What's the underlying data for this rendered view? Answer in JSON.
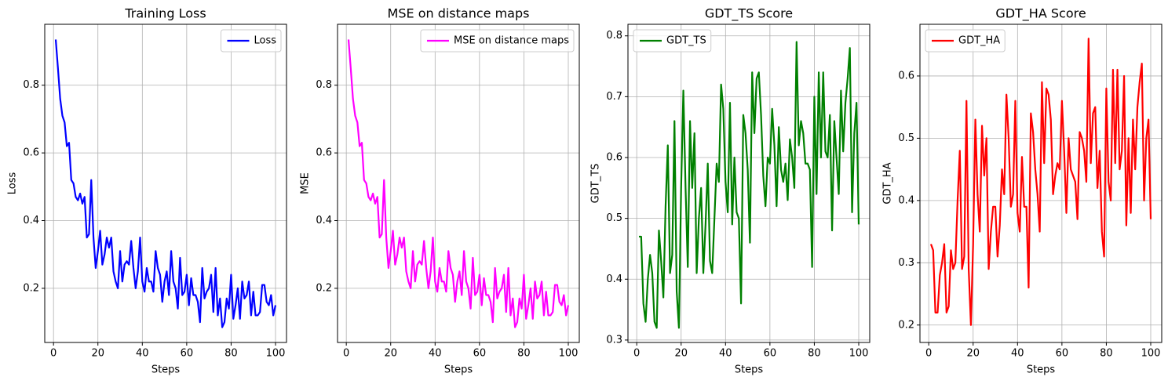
{
  "chart_data": [
    {
      "type": "line",
      "title": "Training Loss",
      "xlabel": "Steps",
      "ylabel": "Loss",
      "x": [
        1,
        2,
        3,
        4,
        5,
        6,
        7,
        8,
        9,
        10,
        11,
        12,
        13,
        14,
        15,
        16,
        17,
        18,
        19,
        20,
        21,
        22,
        23,
        24,
        25,
        26,
        27,
        28,
        29,
        30,
        31,
        32,
        33,
        34,
        35,
        36,
        37,
        38,
        39,
        40,
        41,
        42,
        43,
        44,
        45,
        46,
        47,
        48,
        49,
        50,
        51,
        52,
        53,
        54,
        55,
        56,
        57,
        58,
        59,
        60,
        61,
        62,
        63,
        64,
        65,
        66,
        67,
        68,
        69,
        70,
        71,
        72,
        73,
        74,
        75,
        76,
        77,
        78,
        79,
        80,
        81,
        82,
        83,
        84,
        85,
        86,
        87,
        88,
        89,
        90,
        91,
        92,
        93,
        94,
        95,
        96,
        97,
        98,
        99,
        100
      ],
      "series": [
        {
          "name": "Loss",
          "color": "#0000ff",
          "values": [
            0.935,
            0.85,
            0.76,
            0.71,
            0.69,
            0.62,
            0.63,
            0.52,
            0.51,
            0.47,
            0.46,
            0.48,
            0.45,
            0.47,
            0.35,
            0.36,
            0.52,
            0.35,
            0.26,
            0.31,
            0.37,
            0.27,
            0.3,
            0.35,
            0.32,
            0.35,
            0.25,
            0.22,
            0.2,
            0.31,
            0.22,
            0.27,
            0.28,
            0.27,
            0.34,
            0.26,
            0.2,
            0.25,
            0.35,
            0.22,
            0.19,
            0.26,
            0.22,
            0.22,
            0.19,
            0.31,
            0.26,
            0.24,
            0.16,
            0.22,
            0.25,
            0.18,
            0.31,
            0.22,
            0.2,
            0.14,
            0.29,
            0.18,
            0.19,
            0.24,
            0.15,
            0.23,
            0.18,
            0.18,
            0.16,
            0.1,
            0.26,
            0.17,
            0.19,
            0.2,
            0.24,
            0.13,
            0.26,
            0.12,
            0.17,
            0.085,
            0.1,
            0.17,
            0.14,
            0.24,
            0.11,
            0.15,
            0.2,
            0.11,
            0.22,
            0.17,
            0.18,
            0.22,
            0.12,
            0.19,
            0.12,
            0.12,
            0.13,
            0.21,
            0.21,
            0.16,
            0.15,
            0.18,
            0.12,
            0.15
          ]
        }
      ],
      "xlim": [
        -3.95,
        104.95
      ],
      "xticks": [
        0,
        20,
        40,
        60,
        80,
        100
      ],
      "ylim": [
        0.04,
        0.98
      ],
      "yticks": [
        0.2,
        0.4,
        0.6,
        0.8
      ],
      "grid": true,
      "legend": "upper-right"
    },
    {
      "type": "line",
      "title": "MSE on distance maps",
      "xlabel": "Steps",
      "ylabel": "MSE",
      "x": [
        1,
        2,
        3,
        4,
        5,
        6,
        7,
        8,
        9,
        10,
        11,
        12,
        13,
        14,
        15,
        16,
        17,
        18,
        19,
        20,
        21,
        22,
        23,
        24,
        25,
        26,
        27,
        28,
        29,
        30,
        31,
        32,
        33,
        34,
        35,
        36,
        37,
        38,
        39,
        40,
        41,
        42,
        43,
        44,
        45,
        46,
        47,
        48,
        49,
        50,
        51,
        52,
        53,
        54,
        55,
        56,
        57,
        58,
        59,
        60,
        61,
        62,
        63,
        64,
        65,
        66,
        67,
        68,
        69,
        70,
        71,
        72,
        73,
        74,
        75,
        76,
        77,
        78,
        79,
        80,
        81,
        82,
        83,
        84,
        85,
        86,
        87,
        88,
        89,
        90,
        91,
        92,
        93,
        94,
        95,
        96,
        97,
        98,
        99,
        100
      ],
      "series": [
        {
          "name": "MSE on distance maps",
          "color": "#ff00ff",
          "values": [
            0.935,
            0.85,
            0.76,
            0.71,
            0.69,
            0.62,
            0.63,
            0.52,
            0.51,
            0.47,
            0.46,
            0.48,
            0.45,
            0.47,
            0.35,
            0.36,
            0.52,
            0.35,
            0.26,
            0.31,
            0.37,
            0.27,
            0.3,
            0.35,
            0.32,
            0.35,
            0.25,
            0.22,
            0.2,
            0.31,
            0.22,
            0.27,
            0.28,
            0.27,
            0.34,
            0.26,
            0.2,
            0.25,
            0.35,
            0.22,
            0.19,
            0.26,
            0.22,
            0.22,
            0.19,
            0.31,
            0.26,
            0.24,
            0.16,
            0.22,
            0.25,
            0.18,
            0.31,
            0.22,
            0.2,
            0.14,
            0.29,
            0.18,
            0.19,
            0.24,
            0.15,
            0.23,
            0.18,
            0.18,
            0.16,
            0.1,
            0.26,
            0.17,
            0.19,
            0.2,
            0.24,
            0.13,
            0.26,
            0.12,
            0.17,
            0.085,
            0.1,
            0.17,
            0.14,
            0.24,
            0.11,
            0.15,
            0.2,
            0.11,
            0.22,
            0.17,
            0.18,
            0.22,
            0.12,
            0.19,
            0.12,
            0.12,
            0.13,
            0.21,
            0.21,
            0.16,
            0.15,
            0.18,
            0.12,
            0.15
          ]
        }
      ],
      "xlim": [
        -3.95,
        104.95
      ],
      "xticks": [
        0,
        20,
        40,
        60,
        80,
        100
      ],
      "ylim": [
        0.04,
        0.98
      ],
      "yticks": [
        0.2,
        0.4,
        0.6,
        0.8
      ],
      "grid": true,
      "legend": "upper-right"
    },
    {
      "type": "line",
      "title": "GDT_TS Score",
      "xlabel": "Steps",
      "ylabel": "GDT_TS",
      "x": [
        1,
        2,
        3,
        4,
        5,
        6,
        7,
        8,
        9,
        10,
        11,
        12,
        13,
        14,
        15,
        16,
        17,
        18,
        19,
        20,
        21,
        22,
        23,
        24,
        25,
        26,
        27,
        28,
        29,
        30,
        31,
        32,
        33,
        34,
        35,
        36,
        37,
        38,
        39,
        40,
        41,
        42,
        43,
        44,
        45,
        46,
        47,
        48,
        49,
        50,
        51,
        52,
        53,
        54,
        55,
        56,
        57,
        58,
        59,
        60,
        61,
        62,
        63,
        64,
        65,
        66,
        67,
        68,
        69,
        70,
        71,
        72,
        73,
        74,
        75,
        76,
        77,
        78,
        79,
        80,
        81,
        82,
        83,
        84,
        85,
        86,
        87,
        88,
        89,
        90,
        91,
        92,
        93,
        94,
        95,
        96,
        97,
        98,
        99,
        100
      ],
      "series": [
        {
          "name": "GDT_TS",
          "color": "#008000",
          "values": [
            0.47,
            0.47,
            0.36,
            0.33,
            0.4,
            0.44,
            0.41,
            0.33,
            0.32,
            0.48,
            0.43,
            0.37,
            0.52,
            0.62,
            0.41,
            0.44,
            0.66,
            0.38,
            0.32,
            0.55,
            0.71,
            0.55,
            0.42,
            0.66,
            0.55,
            0.64,
            0.41,
            0.5,
            0.55,
            0.41,
            0.49,
            0.59,
            0.43,
            0.41,
            0.5,
            0.59,
            0.56,
            0.72,
            0.68,
            0.56,
            0.51,
            0.69,
            0.49,
            0.6,
            0.51,
            0.5,
            0.36,
            0.67,
            0.64,
            0.58,
            0.46,
            0.74,
            0.64,
            0.73,
            0.74,
            0.67,
            0.57,
            0.52,
            0.6,
            0.59,
            0.68,
            0.62,
            0.52,
            0.65,
            0.58,
            0.56,
            0.59,
            0.53,
            0.63,
            0.6,
            0.55,
            0.79,
            0.62,
            0.66,
            0.64,
            0.59,
            0.59,
            0.58,
            0.42,
            0.7,
            0.54,
            0.74,
            0.6,
            0.74,
            0.61,
            0.6,
            0.67,
            0.48,
            0.66,
            0.6,
            0.54,
            0.71,
            0.61,
            0.69,
            0.73,
            0.78,
            0.51,
            0.64,
            0.69,
            0.49
          ]
        }
      ],
      "xlim": [
        -3.95,
        104.95
      ],
      "xticks": [
        0,
        20,
        40,
        60,
        80,
        100
      ],
      "ylim": [
        0.296,
        0.819
      ],
      "yticks": [
        0.3,
        0.4,
        0.5,
        0.6,
        0.7,
        0.8
      ],
      "grid": true,
      "legend": "upper-left"
    },
    {
      "type": "line",
      "title": "GDT_HA Score",
      "xlabel": "Steps",
      "ylabel": "GDT_HA",
      "x": [
        1,
        2,
        3,
        4,
        5,
        6,
        7,
        8,
        9,
        10,
        11,
        12,
        13,
        14,
        15,
        16,
        17,
        18,
        19,
        20,
        21,
        22,
        23,
        24,
        25,
        26,
        27,
        28,
        29,
        30,
        31,
        32,
        33,
        34,
        35,
        36,
        37,
        38,
        39,
        40,
        41,
        42,
        43,
        44,
        45,
        46,
        47,
        48,
        49,
        50,
        51,
        52,
        53,
        54,
        55,
        56,
        57,
        58,
        59,
        60,
        61,
        62,
        63,
        64,
        65,
        66,
        67,
        68,
        69,
        70,
        71,
        72,
        73,
        74,
        75,
        76,
        77,
        78,
        79,
        80,
        81,
        82,
        83,
        84,
        85,
        86,
        87,
        88,
        89,
        90,
        91,
        92,
        93,
        94,
        95,
        96,
        97,
        98,
        99,
        100
      ],
      "series": [
        {
          "name": "GDT_HA",
          "color": "#ff0000",
          "values": [
            0.33,
            0.32,
            0.22,
            0.22,
            0.28,
            0.3,
            0.33,
            0.22,
            0.23,
            0.32,
            0.29,
            0.3,
            0.4,
            0.48,
            0.29,
            0.31,
            0.56,
            0.29,
            0.2,
            0.33,
            0.53,
            0.41,
            0.35,
            0.52,
            0.44,
            0.5,
            0.29,
            0.35,
            0.39,
            0.39,
            0.31,
            0.36,
            0.45,
            0.41,
            0.57,
            0.5,
            0.39,
            0.41,
            0.56,
            0.38,
            0.35,
            0.47,
            0.39,
            0.39,
            0.26,
            0.54,
            0.51,
            0.45,
            0.41,
            0.35,
            0.59,
            0.46,
            0.58,
            0.57,
            0.53,
            0.41,
            0.44,
            0.46,
            0.45,
            0.56,
            0.48,
            0.38,
            0.5,
            0.45,
            0.44,
            0.43,
            0.37,
            0.51,
            0.5,
            0.48,
            0.43,
            0.66,
            0.46,
            0.54,
            0.55,
            0.42,
            0.48,
            0.35,
            0.31,
            0.58,
            0.43,
            0.4,
            0.61,
            0.46,
            0.61,
            0.45,
            0.48,
            0.6,
            0.36,
            0.5,
            0.38,
            0.53,
            0.45,
            0.55,
            0.59,
            0.62,
            0.4,
            0.5,
            0.53,
            0.37
          ]
        }
      ],
      "xlim": [
        -3.95,
        104.95
      ],
      "xticks": [
        0,
        20,
        40,
        60,
        80,
        100
      ],
      "ylim": [
        0.172,
        0.683
      ],
      "yticks": [
        0.2,
        0.3,
        0.4,
        0.5,
        0.6
      ],
      "grid": true,
      "legend": "upper-left"
    }
  ]
}
